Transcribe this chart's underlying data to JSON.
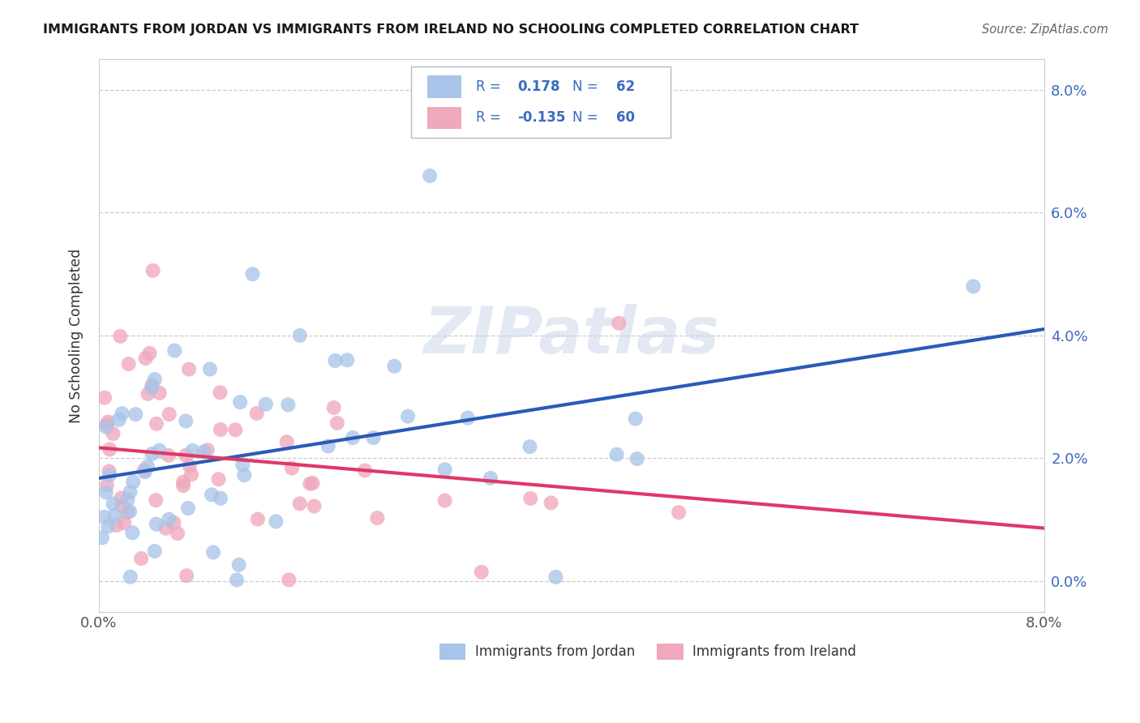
{
  "title": "IMMIGRANTS FROM JORDAN VS IMMIGRANTS FROM IRELAND NO SCHOOLING COMPLETED CORRELATION CHART",
  "source": "Source: ZipAtlas.com",
  "ylabel": "No Schooling Completed",
  "legend_jordan": "Immigrants from Jordan",
  "legend_ireland": "Immigrants from Ireland",
  "jordan_color": "#a8c4e8",
  "ireland_color": "#f0a8bc",
  "jordan_line_color": "#2a5ab8",
  "ireland_line_color": "#e03868",
  "right_tick_color": "#3a6bbf",
  "jordan_R": 0.178,
  "jordan_N": 62,
  "ireland_R": -0.135,
  "ireland_N": 60,
  "xmin": 0.0,
  "xmax": 0.08,
  "ymin": -0.005,
  "ymax": 0.085,
  "watermark": "ZIPatlas",
  "background_color": "#ffffff",
  "grid_color": "#cccccc",
  "title_color": "#1a1a1a",
  "source_color": "#666666",
  "label_color": "#333333",
  "legend_text_color": "#3a6bbf"
}
